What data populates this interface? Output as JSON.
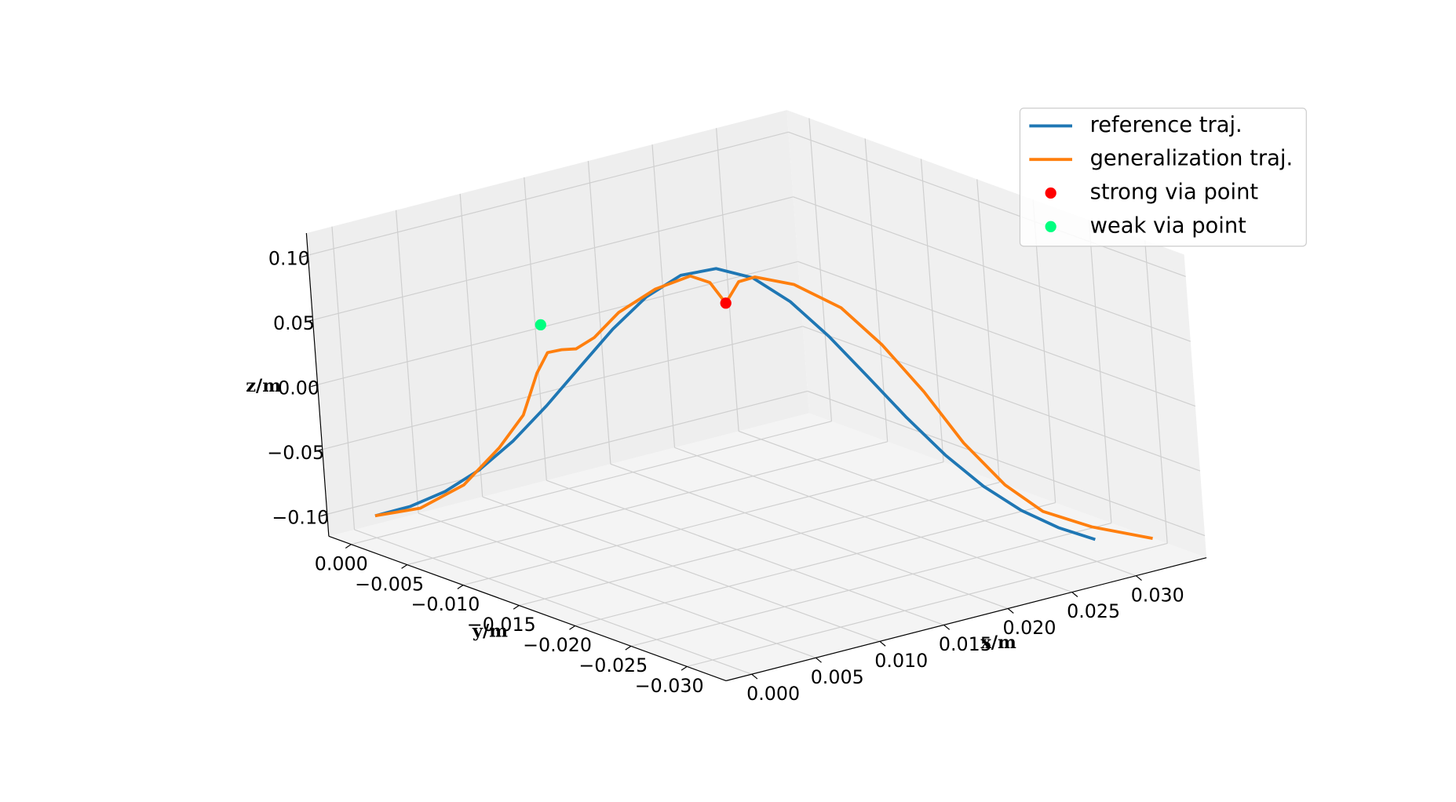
{
  "chart_data": {
    "type": "line3d",
    "xlabel": "x/m",
    "ylabel": "y/m",
    "zlabel": "z/m",
    "xlim": [
      -0.002,
      0.0355
    ],
    "ylim": [
      -0.0335,
      0.002
    ],
    "zlim": [
      -0.117,
      0.117
    ],
    "xticks": [
      {
        "value": 0,
        "label": "0.000"
      },
      {
        "value": 0.005,
        "label": "0.005"
      },
      {
        "value": 0.01,
        "label": "0.010"
      },
      {
        "value": 0.015,
        "label": "0.015"
      },
      {
        "value": 0.02,
        "label": "0.020"
      },
      {
        "value": 0.025,
        "label": "0.025"
      },
      {
        "value": 0.03,
        "label": "0.030"
      }
    ],
    "yticks": [
      {
        "value": 0,
        "label": "0.000"
      },
      {
        "value": -0.005,
        "label": "−0.005"
      },
      {
        "value": -0.01,
        "label": "−0.010"
      },
      {
        "value": -0.015,
        "label": "−0.015"
      },
      {
        "value": -0.02,
        "label": "−0.020"
      },
      {
        "value": -0.025,
        "label": "−0.025"
      },
      {
        "value": -0.03,
        "label": "−0.030"
      }
    ],
    "zticks": [
      {
        "value": -0.1,
        "label": "−0.10"
      },
      {
        "value": -0.05,
        "label": "−0.05"
      },
      {
        "value": 0,
        "label": "0.00"
      },
      {
        "value": 0.05,
        "label": "0.05"
      },
      {
        "value": 0.1,
        "label": "0.10"
      }
    ],
    "grid": true,
    "legend": "upper right",
    "series": [
      {
        "name": "reference traj.",
        "kind": "line",
        "color": "#1f77b4",
        "x": [
          0,
          0.0015,
          0.003,
          0.0045,
          0.006,
          0.0075,
          0.009,
          0.0105,
          0.012,
          0.0135,
          0.015,
          0.0165,
          0.018,
          0.0195,
          0.021,
          0.0225,
          0.024,
          0.0255,
          0.027,
          0.0285,
          0.03
        ],
        "y": [
          0,
          -0.0015,
          -0.003,
          -0.0045,
          -0.006,
          -0.0075,
          -0.009,
          -0.0105,
          -0.012,
          -0.0135,
          -0.015,
          -0.0165,
          -0.018,
          -0.0195,
          -0.021,
          -0.0225,
          -0.024,
          -0.0255,
          -0.027,
          -0.0285,
          -0.03
        ],
        "z": [
          -0.1,
          -0.0918,
          -0.0794,
          -0.0617,
          -0.0385,
          -0.0105,
          0.0202,
          0.0505,
          0.0763,
          0.0938,
          0.1,
          0.0938,
          0.0763,
          0.0505,
          0.0202,
          -0.0105,
          -0.0385,
          -0.0617,
          -0.0794,
          -0.0918,
          -0.1
        ]
      },
      {
        "name": "generalization traj.",
        "kind": "line",
        "color": "#ff7f0e",
        "x": [
          0,
          0.0019,
          0.0038,
          0.0054,
          0.0065,
          0.0072,
          0.0077,
          0.0083,
          0.0089,
          0.0097,
          0.0108,
          0.0124,
          0.0139,
          0.0147,
          0.0153,
          0.0159,
          0.0166,
          0.0182,
          0.0201,
          0.0217,
          0.0233,
          0.0248,
          0.0264,
          0.0279,
          0.0299,
          0.0324
        ],
        "y": [
          0,
          -0.0019,
          -0.0038,
          -0.0054,
          -0.0065,
          -0.0072,
          -0.0077,
          -0.0083,
          -0.0089,
          -0.0097,
          -0.0108,
          -0.0124,
          -0.0139,
          -0.0147,
          -0.0153,
          -0.0159,
          -0.0166,
          -0.0182,
          -0.0201,
          -0.0217,
          -0.0233,
          -0.0248,
          -0.0264,
          -0.0279,
          -0.0299,
          -0.0324
        ],
        "z": [
          -0.1,
          -0.093,
          -0.0739,
          -0.0441,
          -0.0182,
          0.0146,
          0.0307,
          0.0333,
          0.0343,
          0.0435,
          0.0636,
          0.0826,
          0.0936,
          0.089,
          0.0735,
          0.0904,
          0.0945,
          0.0897,
          0.0729,
          0.0451,
          0.01,
          -0.0287,
          -0.0601,
          -0.0796,
          -0.0904,
          -0.0978
        ]
      },
      {
        "name": "strong via point",
        "kind": "scatter",
        "color": "#ff0000",
        "x": [
          0.0153
        ],
        "y": [
          -0.0153
        ],
        "z": [
          0.0735
        ]
      },
      {
        "name": "weak via point",
        "kind": "scatter",
        "color": "#00ff7f",
        "x": [
          0.0075
        ],
        "y": [
          -0.0075
        ],
        "z": [
          0.052
        ]
      }
    ]
  }
}
